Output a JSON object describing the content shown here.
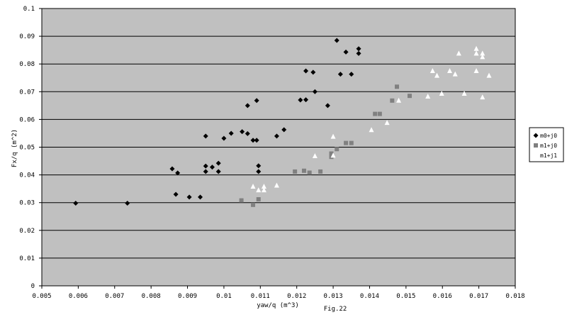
{
  "chart_data": {
    "type": "scatter",
    "title": "",
    "xlabel": "yaw/q (m^3)",
    "ylabel": "Fx/q (m^2)",
    "caption": "Fig.22",
    "xlim": [
      0.005,
      0.018
    ],
    "ylim": [
      0,
      0.1
    ],
    "x_ticks": [
      "0.005",
      "0.006",
      "0.007",
      "0.008",
      "0.009",
      "0.01",
      "0.011",
      "0.012",
      "0.013",
      "0.014",
      "0.015",
      "0.016",
      "0.017",
      "0.018"
    ],
    "y_ticks": [
      "0",
      "0.01",
      "0.02",
      "0.03",
      "0.04",
      "0.05",
      "0.06",
      "0.07",
      "0.08",
      "0.09",
      "0.1"
    ],
    "grid": "horizontal",
    "plot_background": "#c0c0c0",
    "legend_position": "right",
    "series": [
      {
        "name": "m0+j0",
        "marker": "diamond",
        "color": "#000000",
        "points": [
          [
            0.00593,
            0.0298
          ],
          [
            0.00735,
            0.0298
          ],
          [
            0.00858,
            0.0422
          ],
          [
            0.00873,
            0.0407
          ],
          [
            0.00868,
            0.033
          ],
          [
            0.00905,
            0.032
          ],
          [
            0.00935,
            0.032
          ],
          [
            0.0095,
            0.054
          ],
          [
            0.0095,
            0.0432
          ],
          [
            0.0095,
            0.0412
          ],
          [
            0.00968,
            0.0428
          ],
          [
            0.00985,
            0.0442
          ],
          [
            0.00985,
            0.0412
          ],
          [
            0.01,
            0.0532
          ],
          [
            0.0102,
            0.055
          ],
          [
            0.0105,
            0.0556
          ],
          [
            0.01065,
            0.0549
          ],
          [
            0.01065,
            0.065
          ],
          [
            0.0108,
            0.0525
          ],
          [
            0.0109,
            0.0668
          ],
          [
            0.0109,
            0.0525
          ],
          [
            0.01095,
            0.0433
          ],
          [
            0.01095,
            0.0412
          ],
          [
            0.01145,
            0.054
          ],
          [
            0.01165,
            0.0563
          ],
          [
            0.0121,
            0.067
          ],
          [
            0.01225,
            0.0775
          ],
          [
            0.01225,
            0.0671
          ],
          [
            0.01245,
            0.077
          ],
          [
            0.0125,
            0.07
          ],
          [
            0.01285,
            0.065
          ],
          [
            0.0131,
            0.0885
          ],
          [
            0.0132,
            0.0763
          ],
          [
            0.01335,
            0.0843
          ],
          [
            0.0135,
            0.0763
          ],
          [
            0.0137,
            0.0855
          ],
          [
            0.0137,
            0.0838
          ]
        ]
      },
      {
        "name": "m1+j0",
        "marker": "square",
        "color": "#808080",
        "points": [
          [
            0.01048,
            0.0308
          ],
          [
            0.0108,
            0.0292
          ],
          [
            0.01095,
            0.0312
          ],
          [
            0.01195,
            0.0412
          ],
          [
            0.0122,
            0.0415
          ],
          [
            0.01235,
            0.0408
          ],
          [
            0.01265,
            0.0412
          ],
          [
            0.01295,
            0.0465
          ],
          [
            0.01295,
            0.0477
          ],
          [
            0.0131,
            0.0493
          ],
          [
            0.01335,
            0.0515
          ],
          [
            0.0135,
            0.0515
          ],
          [
            0.01415,
            0.062
          ],
          [
            0.01428,
            0.062
          ],
          [
            0.01462,
            0.0668
          ],
          [
            0.01475,
            0.0718
          ],
          [
            0.0151,
            0.0685
          ]
        ]
      },
      {
        "name": "m1+j1",
        "marker": "triangle",
        "color": "#ffffff",
        "points": [
          [
            0.0108,
            0.0358
          ],
          [
            0.01095,
            0.0345
          ],
          [
            0.0111,
            0.0358
          ],
          [
            0.0111,
            0.0345
          ],
          [
            0.01145,
            0.0362
          ],
          [
            0.0125,
            0.0468
          ],
          [
            0.013,
            0.0538
          ],
          [
            0.013,
            0.047
          ],
          [
            0.01405,
            0.0562
          ],
          [
            0.01448,
            0.0588
          ],
          [
            0.0148,
            0.0668
          ],
          [
            0.0156,
            0.0683
          ],
          [
            0.01573,
            0.0775
          ],
          [
            0.01585,
            0.0758
          ],
          [
            0.01598,
            0.0693
          ],
          [
            0.0162,
            0.0775
          ],
          [
            0.01635,
            0.0763
          ],
          [
            0.01645,
            0.0838
          ],
          [
            0.0166,
            0.0693
          ],
          [
            0.01693,
            0.0855
          ],
          [
            0.01693,
            0.0838
          ],
          [
            0.01693,
            0.0775
          ],
          [
            0.0171,
            0.0838
          ],
          [
            0.0171,
            0.0825
          ],
          [
            0.0171,
            0.068
          ],
          [
            0.01728,
            0.0758
          ]
        ]
      }
    ]
  }
}
